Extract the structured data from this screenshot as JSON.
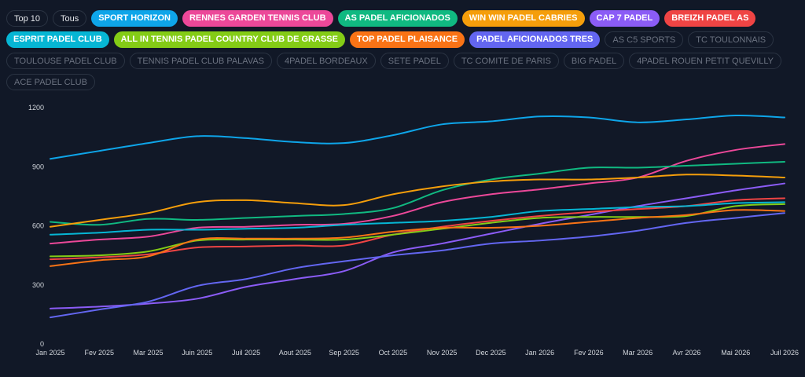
{
  "filters": {
    "top_label": "Top 10",
    "all_label": "Tous",
    "clubs": [
      {
        "name": "SPORT HORIZON",
        "color": "#0ea5e9",
        "active": true
      },
      {
        "name": "RENNES GARDEN TENNIS CLUB",
        "color": "#ec4899",
        "active": true
      },
      {
        "name": "AS PADEL AFICIONADOS",
        "color": "#10b981",
        "active": true
      },
      {
        "name": "WIN WIN PADEL CABRIES",
        "color": "#f59e0b",
        "active": true
      },
      {
        "name": "CAP 7 PADEL",
        "color": "#8b5cf6",
        "active": true
      },
      {
        "name": "BREIZH PADEL AS",
        "color": "#ef4444",
        "active": true
      },
      {
        "name": "ESPRIT PADEL CLUB",
        "color": "#06b6d4",
        "active": true
      },
      {
        "name": "ALL IN TENNIS PADEL COUNTRY CLUB DE GRASSE",
        "color": "#84cc16",
        "active": true
      },
      {
        "name": "TOP PADEL PLAISANCE",
        "color": "#f97316",
        "active": true
      },
      {
        "name": "PADEL AFICIONADOS TRES",
        "color": "#6366f1",
        "active": true
      },
      {
        "name": "AS C5 SPORTS",
        "active": false
      },
      {
        "name": "TC TOULONNAIS",
        "active": false
      },
      {
        "name": "TOULOUSE PADEL CLUB",
        "active": false
      },
      {
        "name": "TENNIS PADEL CLUB PALAVAS",
        "active": false
      },
      {
        "name": "4PADEL BORDEAUX",
        "active": false
      },
      {
        "name": "SETE PADEL",
        "active": false
      },
      {
        "name": "TC COMITE DE PARIS",
        "active": false
      },
      {
        "name": "BIG PADEL",
        "active": false
      },
      {
        "name": "4PADEL ROUEN PETIT QUEVILLY",
        "active": false
      },
      {
        "name": "ACE PADEL CLUB",
        "active": false
      }
    ]
  },
  "chart_data": {
    "type": "line",
    "x": [
      "Jan 2025",
      "Fev 2025",
      "Mar 2025",
      "Juin 2025",
      "Juil 2025",
      "Aout 2025",
      "Sep 2025",
      "Oct 2025",
      "Nov 2025",
      "Dec 2025",
      "Jan 2026",
      "Fev 2026",
      "Mar 2026",
      "Avr 2026",
      "Mai 2026",
      "Juil 2026"
    ],
    "ylim": [
      0,
      1200
    ],
    "yticks": [
      0,
      300,
      600,
      900,
      1200
    ],
    "grid": false,
    "series": [
      {
        "name": "SPORT HORIZON",
        "color": "#0ea5e9",
        "values": [
          940,
          980,
          1020,
          1055,
          1045,
          1025,
          1020,
          1060,
          1115,
          1130,
          1155,
          1150,
          1125,
          1140,
          1160,
          1150
        ]
      },
      {
        "name": "RENNES GARDEN TENNIS CLUB",
        "color": "#ec4899",
        "values": [
          510,
          530,
          545,
          590,
          595,
          605,
          610,
          650,
          720,
          760,
          785,
          815,
          845,
          930,
          985,
          1015
        ]
      },
      {
        "name": "AS PADEL AFICIONADOS",
        "color": "#10b981",
        "values": [
          620,
          605,
          635,
          630,
          640,
          650,
          660,
          690,
          780,
          835,
          865,
          895,
          895,
          905,
          915,
          925
        ]
      },
      {
        "name": "WIN WIN PADEL CABRIES",
        "color": "#f59e0b",
        "values": [
          595,
          630,
          665,
          720,
          730,
          715,
          705,
          760,
          800,
          825,
          835,
          835,
          845,
          860,
          855,
          845
        ]
      },
      {
        "name": "CAP 7 PADEL",
        "color": "#8b5cf6",
        "values": [
          180,
          190,
          205,
          230,
          290,
          330,
          370,
          465,
          510,
          560,
          610,
          655,
          700,
          740,
          780,
          815
        ]
      },
      {
        "name": "BREIZH PADEL AS",
        "color": "#ef4444",
        "values": [
          430,
          440,
          455,
          490,
          495,
          500,
          500,
          555,
          595,
          625,
          650,
          670,
          685,
          700,
          730,
          740
        ]
      },
      {
        "name": "ESPRIT PADEL CLUB",
        "color": "#06b6d4",
        "values": [
          555,
          565,
          580,
          580,
          585,
          590,
          605,
          615,
          625,
          645,
          675,
          685,
          695,
          700,
          715,
          720
        ]
      },
      {
        "name": "ALL IN TENNIS PADEL COUNTRY CLUB DE GRASSE",
        "color": "#84cc16",
        "values": [
          445,
          450,
          470,
          525,
          530,
          530,
          530,
          555,
          585,
          615,
          640,
          645,
          645,
          650,
          700,
          710
        ]
      },
      {
        "name": "TOP PADEL PLAISANCE",
        "color": "#f97316",
        "values": [
          395,
          425,
          445,
          530,
          535,
          535,
          540,
          570,
          590,
          590,
          600,
          620,
          640,
          655,
          680,
          675
        ]
      },
      {
        "name": "PADEL AFICIONADOS TRES",
        "color": "#6366f1",
        "values": [
          135,
          175,
          215,
          295,
          330,
          385,
          420,
          450,
          475,
          510,
          525,
          545,
          575,
          615,
          640,
          665
        ]
      }
    ]
  }
}
